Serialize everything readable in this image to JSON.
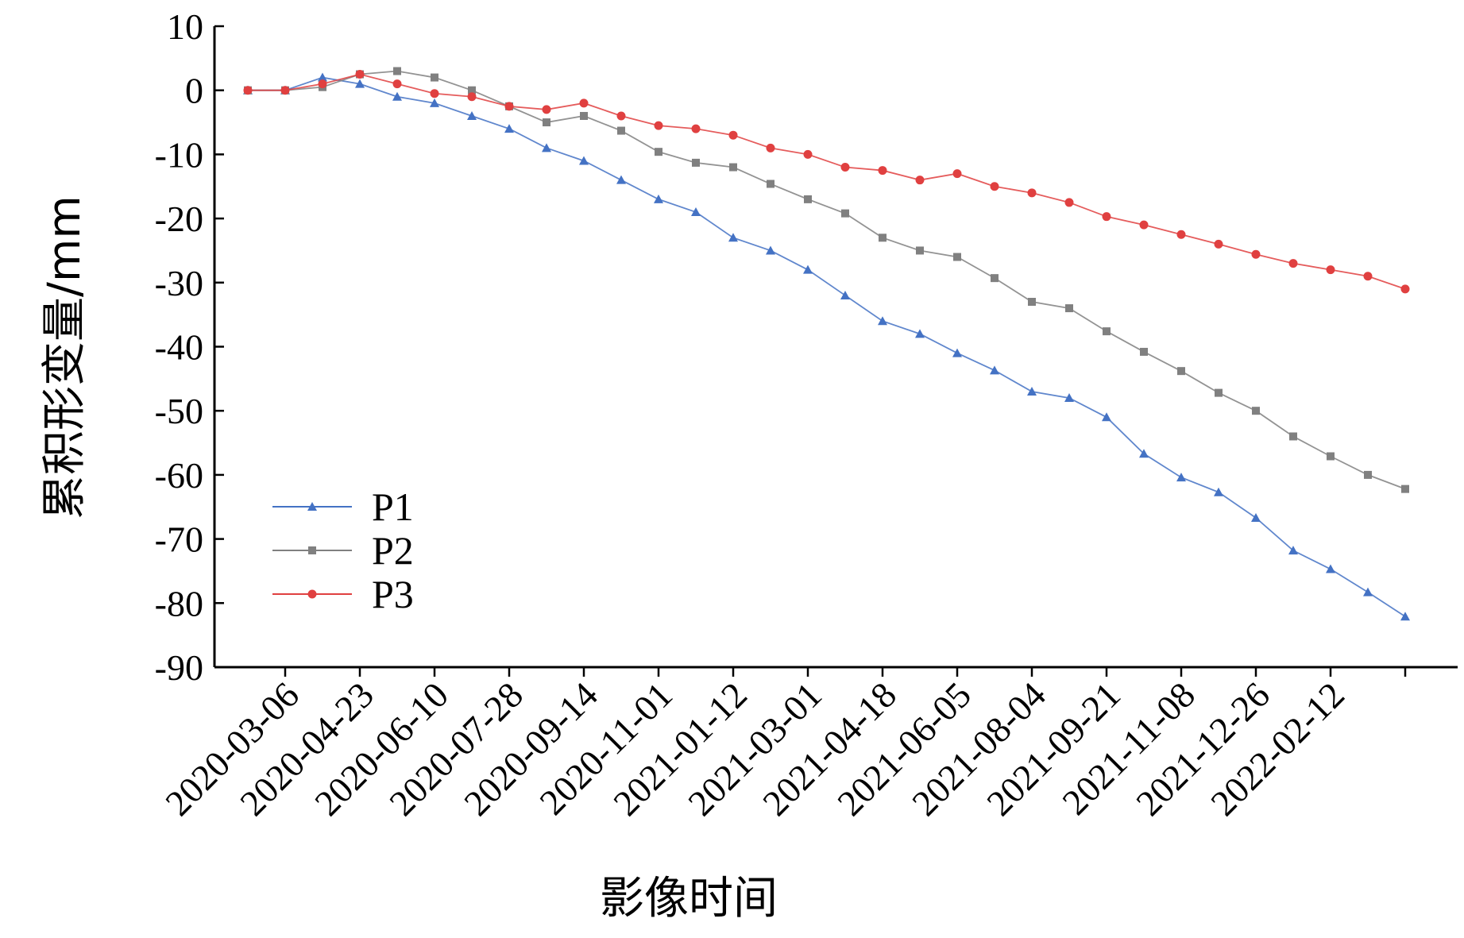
{
  "chart_data": {
    "type": "line",
    "title": "",
    "xlabel": "影像时间",
    "ylabel": "累积形变量/mm",
    "ylim": [
      -90,
      10
    ],
    "yticks": [
      10,
      0,
      -10,
      -20,
      -30,
      -40,
      -50,
      -60,
      -70,
      -80,
      -90
    ],
    "xtick_labels": [
      "2020-03-06",
      "2020-04-23",
      "2020-06-10",
      "2020-07-28",
      "2020-09-14",
      "2020-11-01",
      "2021-01-12",
      "2021-03-01",
      "2021-04-18",
      "2021-06-05",
      "2021-08-04",
      "2021-09-21",
      "2021-11-08",
      "2021-12-26",
      "2022-02-12"
    ],
    "grid": false,
    "legend_position": "left",
    "series": [
      {
        "name": "P1",
        "color": "#4472c4",
        "marker": "triangle",
        "values": [
          0,
          0,
          2,
          1,
          -1,
          -2,
          -4,
          -6,
          -9,
          -11,
          -14,
          -17,
          -19,
          -23,
          -25,
          -28,
          -32,
          -36,
          -38,
          -41,
          -43.7,
          -47,
          -48,
          -51,
          -56.7,
          -60.4,
          -62.7,
          -66.7,
          -71.8,
          -74.7,
          -78.3,
          -82.1
        ]
      },
      {
        "name": "P2",
        "color": "#808080",
        "marker": "square",
        "values": [
          0,
          0,
          0.5,
          2.5,
          3,
          2,
          0,
          -2.5,
          -5,
          -4,
          -6.3,
          -9.6,
          -11.3,
          -12,
          -14.6,
          -17,
          -19.2,
          -23,
          -25,
          -26,
          -29.3,
          -33,
          -34,
          -37.6,
          -40.8,
          -43.8,
          -47.2,
          -50,
          -54,
          -57.1,
          -60,
          -62.2
        ]
      },
      {
        "name": "P3",
        "color": "#e04040",
        "marker": "circle",
        "values": [
          0,
          0,
          1,
          2.5,
          1,
          -0.5,
          -1,
          -2.5,
          -3,
          -2,
          -4,
          -5.5,
          -6,
          -7,
          -9,
          -10,
          -12,
          -12.5,
          -14,
          -13,
          -15,
          -16,
          -17.5,
          -19.7,
          -21,
          -22.5,
          -24,
          -25.6,
          -27,
          -28,
          -29,
          -31
        ]
      }
    ]
  }
}
